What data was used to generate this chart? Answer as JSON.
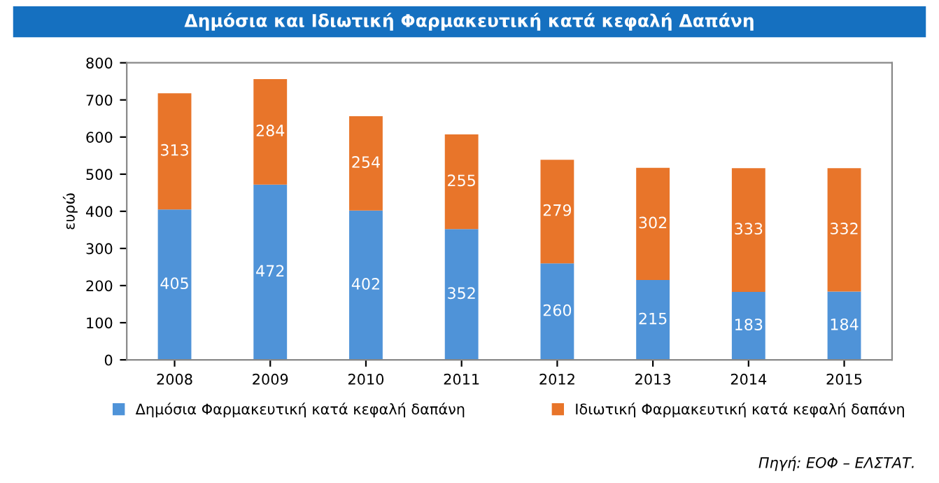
{
  "chart_data": {
    "type": "bar",
    "title": "Δημόσια και Ιδιωτική Φαρμακευτική κατά κεφαλή Δαπάνη",
    "ylabel": "ευρώ",
    "categories": [
      "2008",
      "2009",
      "2010",
      "2011",
      "2012",
      "2013",
      "2014",
      "2015"
    ],
    "stacked": true,
    "series": [
      {
        "name": "Δημόσια Φαρμακευτική κατά κεφαλή δαπάνη",
        "color": "#4f93d8",
        "values": [
          405,
          472,
          402,
          352,
          260,
          215,
          183,
          184
        ]
      },
      {
        "name": "Ιδιωτική Φαρμακευτική κατά κεφαλή δαπάνη",
        "color": "#e8752a",
        "values": [
          313,
          284,
          254,
          255,
          279,
          302,
          333,
          332
        ]
      }
    ],
    "ylim": [
      0,
      800
    ],
    "yticks": [
      0,
      100,
      200,
      300,
      400,
      500,
      600,
      700,
      800
    ],
    "data_labels": true,
    "legend": "bottom",
    "annotations": [
      "Πηγή: ΕΟΦ – ΕΛΣΤΑΤ."
    ]
  }
}
